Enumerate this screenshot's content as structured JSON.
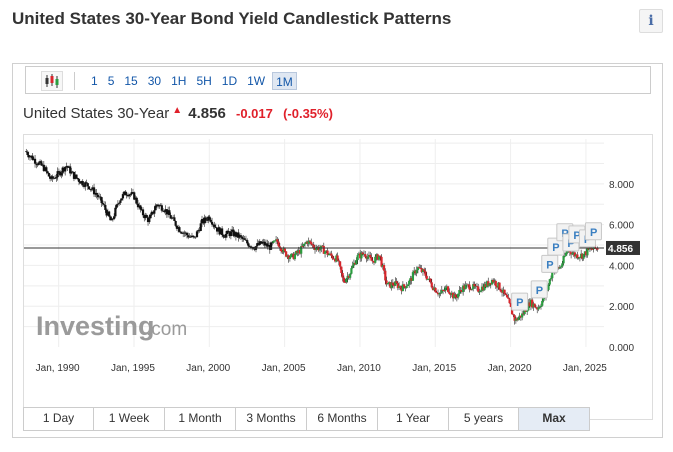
{
  "title": "United States 30-Year Bond Yield Candlestick Patterns",
  "info_label": "i",
  "toolbar": {
    "timeframes": [
      "1",
      "5",
      "15",
      "30",
      "1H",
      "5H",
      "1D",
      "1W",
      "1M"
    ],
    "active": "1M"
  },
  "quote": {
    "name": "United States 30-Year",
    "arrow": "▲",
    "last": "4.856",
    "change": "-0.017",
    "change_pct": "(-0.35%)"
  },
  "watermark": {
    "brand": "Investing",
    "suffix": ".com"
  },
  "ranges": [
    "1 Day",
    "1 Week",
    "1 Month",
    "3 Months",
    "6 Months",
    "1 Year",
    "5 years",
    "Max"
  ],
  "active_range": "Max",
  "chart_data": {
    "type": "candlestick",
    "x_tick_labels": [
      "Jan, 1990",
      "Jan, 1995",
      "Jan, 2000",
      "Jan, 2005",
      "Jan, 2010",
      "Jan, 2015",
      "Jan, 2020",
      "Jan, 2025"
    ],
    "y_tick_labels": [
      "0.000",
      "2.000",
      "4.000",
      "6.000",
      "8.000"
    ],
    "y_ticks": [
      0,
      2,
      4,
      6,
      8
    ],
    "ylim": [
      0,
      10.2
    ],
    "xlim": [
      1987.7,
      2026.2
    ],
    "last_value": 4.856,
    "last_value_label": "4.856",
    "pattern_marker_label": "P",
    "pattern_markers": [
      {
        "x": 2020.6,
        "y": 2.2
      },
      {
        "x": 2021.9,
        "y": 2.8
      },
      {
        "x": 2022.6,
        "y": 4.05
      },
      {
        "x": 2023.0,
        "y": 4.9
      },
      {
        "x": 2023.6,
        "y": 5.6
      },
      {
        "x": 2024.0,
        "y": 5.1
      },
      {
        "x": 2024.4,
        "y": 5.5
      },
      {
        "x": 2025.1,
        "y": 5.3
      },
      {
        "x": 2025.5,
        "y": 5.65
      }
    ],
    "series": [
      {
        "x": [
          1987.8,
          1988.5,
          1989.0,
          1989.5,
          1990.0,
          1990.5,
          1991.0,
          1991.5,
          1992.0,
          1992.5,
          1993.0,
          1993.5,
          1994.0,
          1994.5,
          1995.0,
          1995.5,
          1996.0,
          1996.5,
          1997.0,
          1997.5,
          1998.0,
          1998.5,
          1999.0,
          1999.5,
          2000.0,
          2000.5,
          2001.0,
          2001.5,
          2002.0,
          2002.5,
          2003.0,
          2003.5,
          2004.0,
          2004.5,
          2005.0,
          2005.5,
          2006.0,
          2006.5,
          2007.0,
          2007.5,
          2008.0,
          2008.5,
          2008.9,
          2009.3,
          2009.8,
          2010.3,
          2010.8,
          2011.3,
          2011.8,
          2012.3,
          2012.8,
          2013.3,
          2013.8,
          2014.3,
          2014.8,
          2015.3,
          2015.8,
          2016.3,
          2016.8,
          2017.3,
          2017.8,
          2018.3,
          2018.8,
          2019.3,
          2019.8,
          2020.0,
          2020.3,
          2020.8,
          2021.3,
          2021.8,
          2022.3,
          2022.8,
          2023.3,
          2023.8,
          2024.3,
          2024.8,
          2025.3,
          2025.8
        ],
        "values": [
          9.6,
          9.1,
          8.8,
          8.2,
          8.5,
          8.9,
          8.4,
          8.1,
          7.9,
          7.5,
          6.9,
          6.1,
          7.2,
          7.6,
          7.4,
          6.6,
          6.2,
          7.0,
          6.8,
          6.3,
          5.8,
          5.5,
          5.3,
          6.1,
          6.4,
          5.8,
          5.5,
          5.6,
          5.4,
          5.1,
          4.9,
          5.1,
          4.9,
          5.2,
          4.6,
          4.4,
          4.7,
          5.2,
          4.9,
          4.8,
          4.5,
          4.3,
          3.2,
          3.6,
          4.4,
          4.6,
          4.2,
          4.5,
          3.0,
          3.1,
          2.9,
          3.2,
          3.9,
          3.6,
          3.0,
          2.6,
          2.9,
          2.4,
          2.9,
          3.0,
          2.8,
          3.0,
          3.3,
          2.9,
          2.3,
          1.9,
          1.3,
          1.6,
          2.2,
          1.9,
          2.5,
          3.8,
          3.9,
          4.8,
          4.5,
          4.5,
          4.8,
          4.856
        ]
      }
    ]
  }
}
